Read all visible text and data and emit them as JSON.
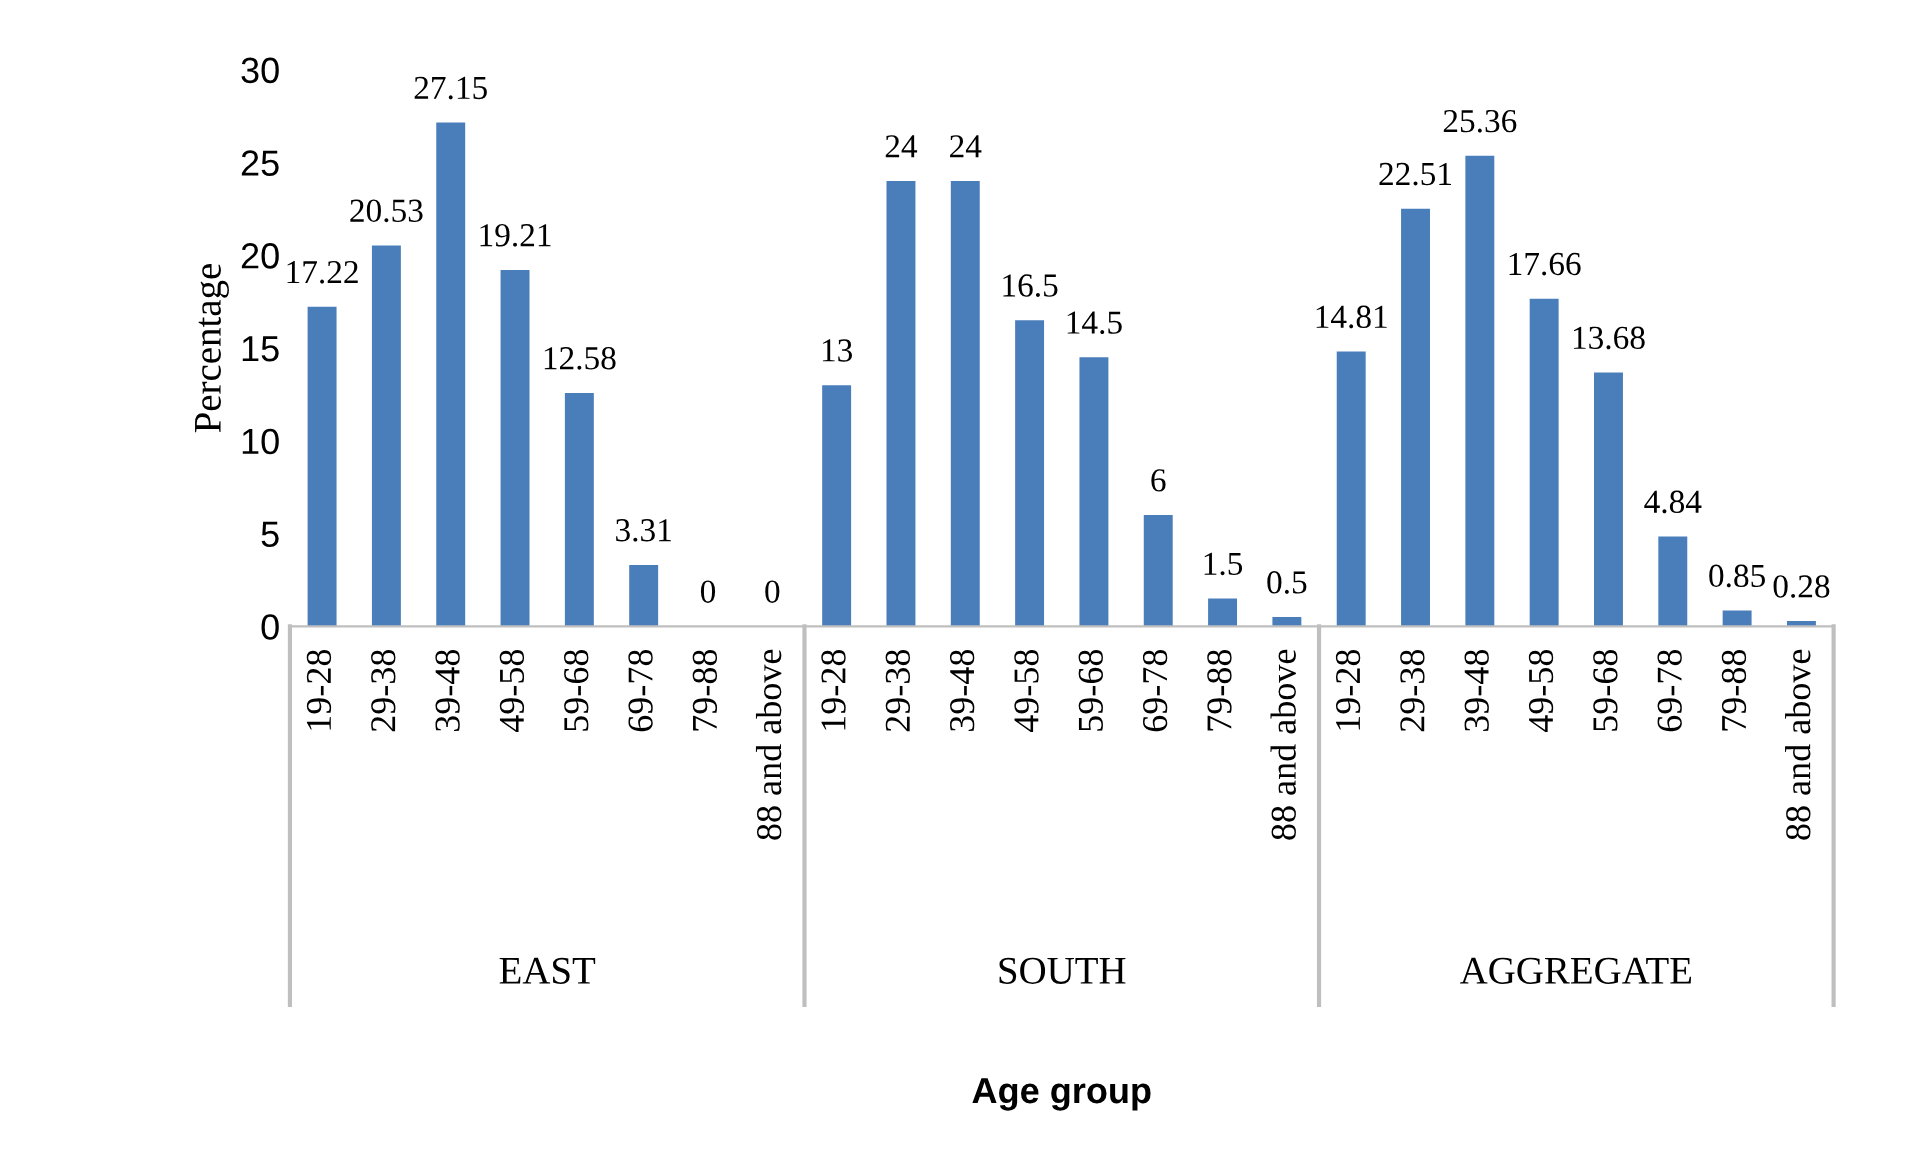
{
  "chart_data": {
    "type": "bar",
    "ylabel": "Percentage",
    "categories": [
      "19-28",
      "29-38",
      "39-48",
      "49-58",
      "59-68",
      "69-78",
      "79-88",
      "88 and above",
      "19-28",
      "29-38",
      "39-48",
      "49-58",
      "59-68",
      "69-78",
      "79-88",
      "88 and above",
      "19-28",
      "29-38",
      "39-48",
      "49-58",
      "59-68",
      "69-78",
      "79-88",
      "88 and above"
    ],
    "values": [
      17.22,
      20.53,
      27.15,
      19.21,
      12.58,
      3.31,
      0,
      0,
      13,
      24,
      24,
      16.5,
      14.5,
      6,
      1.5,
      0.5,
      14.81,
      22.51,
      25.36,
      17.66,
      13.68,
      4.84,
      0.85,
      0.28
    ],
    "color": "#4a7ebb",
    "data_labels": true,
    "ylim": [
      0,
      30
    ],
    "yticks": [
      0,
      5,
      10,
      15,
      20,
      25,
      30
    ],
    "grid": false,
    "annotations": [
      "EAST",
      "SOUTH",
      "AGGREGATE",
      "Age group"
    ]
  }
}
